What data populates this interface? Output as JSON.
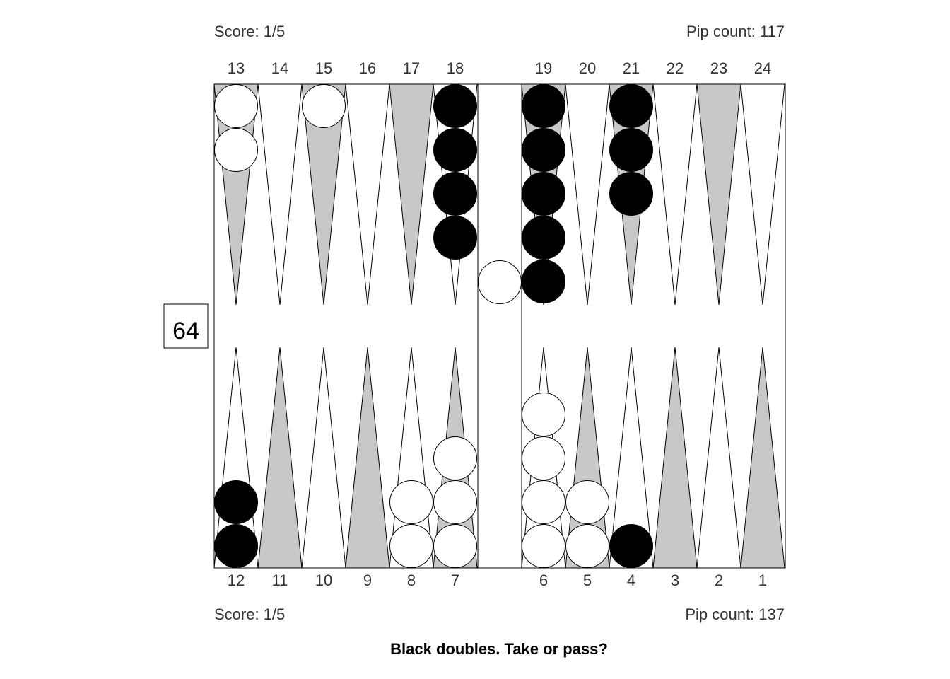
{
  "top": {
    "score": "Score: 1/5",
    "pip_count": "Pip count: 117",
    "point_numbers": [
      "13",
      "14",
      "15",
      "16",
      "17",
      "18",
      "19",
      "20",
      "21",
      "22",
      "23",
      "24"
    ]
  },
  "bottom": {
    "score": "Score: 1/5",
    "pip_count": "Pip count: 137",
    "point_numbers": [
      "12",
      "11",
      "10",
      "9",
      "8",
      "7",
      "6",
      "5",
      "4",
      "3",
      "2",
      "1"
    ]
  },
  "cube": {
    "value": "64"
  },
  "question": "Black doubles. Take or pass?",
  "colors": {
    "board_border": "#000000",
    "point_light": "#ffffff",
    "point_dark": "#c8c8c8",
    "checker_white": "#ffffff",
    "checker_black": "#000000",
    "text": "#333333"
  },
  "position": {
    "points": [
      {
        "point": 1,
        "color": null,
        "count": 0
      },
      {
        "point": 2,
        "color": null,
        "count": 0
      },
      {
        "point": 3,
        "color": null,
        "count": 0
      },
      {
        "point": 4,
        "color": "black",
        "count": 1
      },
      {
        "point": 5,
        "color": "white",
        "count": 2
      },
      {
        "point": 6,
        "color": "white",
        "count": 4
      },
      {
        "point": 7,
        "color": "white",
        "count": 3
      },
      {
        "point": 8,
        "color": "white",
        "count": 2
      },
      {
        "point": 9,
        "color": null,
        "count": 0
      },
      {
        "point": 10,
        "color": null,
        "count": 0
      },
      {
        "point": 11,
        "color": null,
        "count": 0
      },
      {
        "point": 12,
        "color": "black",
        "count": 2
      },
      {
        "point": 13,
        "color": "white",
        "count": 2
      },
      {
        "point": 14,
        "color": null,
        "count": 0
      },
      {
        "point": 15,
        "color": "white",
        "count": 1
      },
      {
        "point": 16,
        "color": null,
        "count": 0
      },
      {
        "point": 17,
        "color": null,
        "count": 0
      },
      {
        "point": 18,
        "color": "black",
        "count": 4
      },
      {
        "point": 19,
        "color": "black",
        "count": 5
      },
      {
        "point": 20,
        "color": null,
        "count": 0
      },
      {
        "point": 21,
        "color": "black",
        "count": 3
      },
      {
        "point": 22,
        "color": null,
        "count": 0
      },
      {
        "point": 23,
        "color": null,
        "count": 0
      },
      {
        "point": 24,
        "color": null,
        "count": 0
      }
    ],
    "bar": {
      "white": 1,
      "black": 0
    }
  }
}
